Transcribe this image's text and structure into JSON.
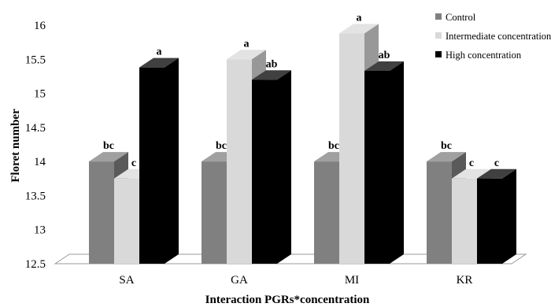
{
  "chart_data": {
    "type": "bar",
    "categories": [
      "SA",
      "GA",
      "MI",
      "KR"
    ],
    "series": [
      {
        "name": "Control",
        "color": "#808080",
        "values": [
          14.0,
          14.0,
          14.0,
          14.0
        ],
        "labels": [
          "bc",
          "bc",
          "bc",
          "bc"
        ]
      },
      {
        "name": "Intermediate concentration",
        "color": "#d9d9d9",
        "values": [
          13.75,
          15.5,
          15.88,
          13.75
        ],
        "labels": [
          "c",
          "a",
          "a",
          "c"
        ]
      },
      {
        "name": "High concentration",
        "color": "#000000",
        "values": [
          15.38,
          15.2,
          15.33,
          13.75
        ],
        "labels": [
          "a",
          "ab",
          "ab",
          "c"
        ]
      }
    ],
    "xlabel": "Interaction  PGRs*concentration",
    "ylabel": "Floret number",
    "ylim": [
      12.5,
      16
    ],
    "yticks": [
      "12.5",
      "13",
      "13.5",
      "14",
      "14.5",
      "15",
      "15.5",
      "16"
    ],
    "grid": false,
    "legend": "top-right"
  }
}
